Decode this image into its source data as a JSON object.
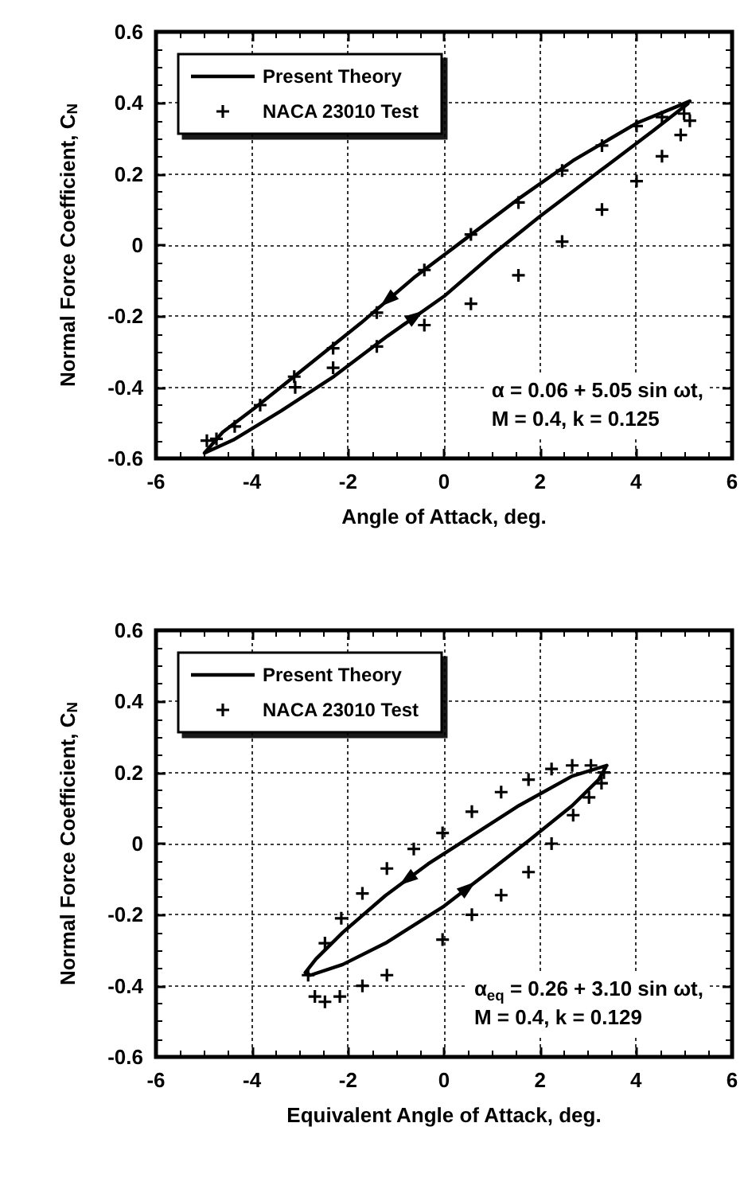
{
  "chart_data": [
    {
      "type": "scatter",
      "xlabel": "Angle of Attack, deg.",
      "ylabel": "Normal Force Coefficient, C$_{N}$",
      "xlim": [
        -6,
        6
      ],
      "xticks": [
        -6,
        -4,
        -2,
        0,
        2,
        4,
        6
      ],
      "ylim": [
        -0.6,
        0.6
      ],
      "yticks": [
        -0.6,
        -0.4,
        -0.2,
        0,
        0.2,
        0.4,
        0.6
      ],
      "grid": true,
      "legend": "top left",
      "annotations": [
        "α = 0.06 + 5.05 sin ωt,\nM = 0.4, k = 0.125"
      ],
      "series": [
        {
          "name": "Present Theory",
          "type": "line",
          "color": "#000000",
          "marker": "none",
          "line_style": "solid",
          "x": [
            5.12,
            4.01,
            2.69,
            1.58,
            0.48,
            -0.63,
            -1.73,
            -2.84,
            -3.94,
            -4.61,
            -4.99,
            -4.39,
            -3.39,
            -2.29,
            -1.18,
            0,
            1.03,
            2.0,
            3.24,
            4.34,
            5.08
          ],
          "values": [
            0.405,
            0.343,
            0.238,
            0.133,
            0.021,
            -0.092,
            -0.219,
            -0.339,
            -0.458,
            -0.526,
            -0.585,
            -0.548,
            -0.466,
            -0.369,
            -0.256,
            -0.144,
            -0.024,
            0.081,
            0.208,
            0.32,
            0.398
          ]
        },
        {
          "name": "NACA 23010 Test",
          "type": "scatter",
          "color": "#000000",
          "marker": "cross",
          "x": [
            -4.94,
            -4.74,
            -4.36,
            -3.83,
            -3.12,
            -3.1,
            -2.31,
            -2.31,
            -1.4,
            -1.4,
            -0.41,
            -0.41,
            0.56,
            0.56,
            1.55,
            1.55,
            2.46,
            2.46,
            3.29,
            3.29,
            4.01,
            4.01,
            4.54,
            4.54,
            4.93,
            5.0,
            5.12
          ],
          "values": [
            -0.55,
            -0.545,
            -0.51,
            -0.45,
            -0.37,
            -0.4,
            -0.29,
            -0.345,
            -0.19,
            -0.285,
            -0.07,
            -0.225,
            0.03,
            -0.165,
            0.12,
            -0.085,
            0.21,
            0.01,
            0.28,
            0.1,
            0.335,
            0.18,
            0.36,
            0.25,
            0.31,
            0.37,
            0.35
          ]
        }
      ]
    },
    {
      "type": "scatter",
      "xlabel": "Equivalent Angle of Attack, deg.",
      "ylabel": "Normal Force Coefficient, C$_{N}$",
      "xlim": [
        -6,
        6
      ],
      "xticks": [
        -6,
        -4,
        -2,
        0,
        2,
        4,
        6
      ],
      "ylim": [
        -0.6,
        0.6
      ],
      "yticks": [
        -0.6,
        -0.4,
        -0.2,
        0,
        0.2,
        0.4,
        0.6
      ],
      "grid": true,
      "legend": "top left",
      "annotations": [
        "α$_{eq}$ = 0.26 + 3.10 sin ωt,\nM = 0.4, k = 0.129"
      ],
      "series": [
        {
          "name": "Present Theory",
          "type": "line",
          "color": "#000000",
          "marker": "none",
          "line_style": "solid",
          "x": [
            3.39,
            2.67,
            1.56,
            0.44,
            -0.33,
            -1.22,
            -2.11,
            -2.67,
            -2.89,
            -2.78,
            -2.11,
            -1.22,
            0,
            1.0,
            1.78,
            2.67,
            3.22,
            3.37
          ],
          "values": [
            0.22,
            0.19,
            0.107,
            0.01,
            -0.057,
            -0.146,
            -0.25,
            -0.325,
            -0.363,
            -0.37,
            -0.34,
            -0.28,
            -0.176,
            -0.072,
            0.01,
            0.107,
            0.18,
            0.215
          ]
        },
        {
          "name": "NACA 23010 Test",
          "type": "scatter",
          "color": "#000000",
          "marker": "cross",
          "x": [
            -2.83,
            -2.69,
            -2.48,
            -2.17,
            -1.7,
            -1.19,
            -2.48,
            -2.14,
            -1.7,
            -1.19,
            -0.63,
            -0.03,
            -0.03,
            0.58,
            0.58,
            1.19,
            1.19,
            1.76,
            1.76,
            2.24,
            2.24,
            2.67,
            2.69,
            3.02,
            3.06,
            3.28,
            3.33
          ],
          "values": [
            -0.37,
            -0.43,
            -0.445,
            -0.43,
            -0.4,
            -0.37,
            -0.28,
            -0.21,
            -0.14,
            -0.07,
            -0.015,
            0.03,
            -0.27,
            0.09,
            -0.2,
            0.145,
            -0.145,
            0.18,
            -0.08,
            0.21,
            0,
            0.22,
            0.08,
            0.13,
            0.22,
            0.17,
            0.2
          ]
        }
      ]
    }
  ]
}
